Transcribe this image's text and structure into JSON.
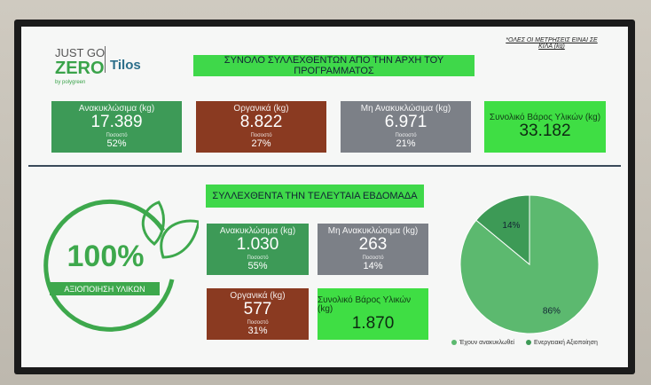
{
  "logo": {
    "line1": "JUST GO",
    "line2": "ZERO",
    "place": "Tilos",
    "byline": "by polygreen"
  },
  "note": "*ΟΛΕΣ ΟΙ ΜΕΤΡΗΣΕΙΣ ΕΙΝΑΙ ΣΕ ΚΙΛΑ (kg)",
  "total_section": {
    "title": "ΣΥΝΟΛΟ ΣΥΛΛΕΧΘΕΝΤΩΝ ΑΠΟ ΤΗΝ ΑΡΧΗ ΤΟΥ ΠΡΟΓΡΑΜΜΑΤΟΣ",
    "cards": [
      {
        "label": "Ανακυκλώσιμα (kg)",
        "value": "17.389",
        "share_label": "Ποσοστό",
        "share": "52%"
      },
      {
        "label": "Οργανικά (kg)",
        "value": "8.822",
        "share_label": "Ποσοστό",
        "share": "27%"
      },
      {
        "label": "Μη Ανακυκλώσιμα (kg)",
        "value": "6.971",
        "share_label": "Ποσοστό",
        "share": "21%"
      },
      {
        "label": "Συνολικό Βάρος Υλικών (kg)",
        "value": "33.182"
      }
    ]
  },
  "week_section": {
    "title": "ΣΥΛΛΕΧΘΕΝΤΑ ΤΗΝ ΤΕΛΕΥΤΑΙΑ ΕΒΔΟΜΑΔΑ",
    "cards": [
      {
        "label": "Ανακυκλώσιμα (kg)",
        "value": "1.030",
        "share_label": "Ποσοστό",
        "share": "55%"
      },
      {
        "label": "Μη Ανακυκλώσιμα (kg)",
        "value": "263",
        "share_label": "Ποσοστό",
        "share": "14%"
      },
      {
        "label": "Οργανικά (kg)",
        "value": "577",
        "share_label": "Ποσοστό",
        "share": "31%"
      },
      {
        "label": "Συνολικό Βάρος Υλικών (kg)",
        "value": "1.870"
      }
    ]
  },
  "badge": {
    "value": "100%",
    "caption": "ΑΞΙΟΠΟΙΗΣΗ ΥΛΙΚΩΝ"
  },
  "pie_chart": {
    "type": "pie",
    "series": [
      {
        "name": "Έχουν ανακυκλωθεί",
        "value": 86,
        "value_label": "86%",
        "color": "#5cb96f"
      },
      {
        "name": "Ενεργειακή Αξιοποίηση",
        "value": 14,
        "value_label": "14%",
        "color": "#3d9a56"
      }
    ]
  }
}
